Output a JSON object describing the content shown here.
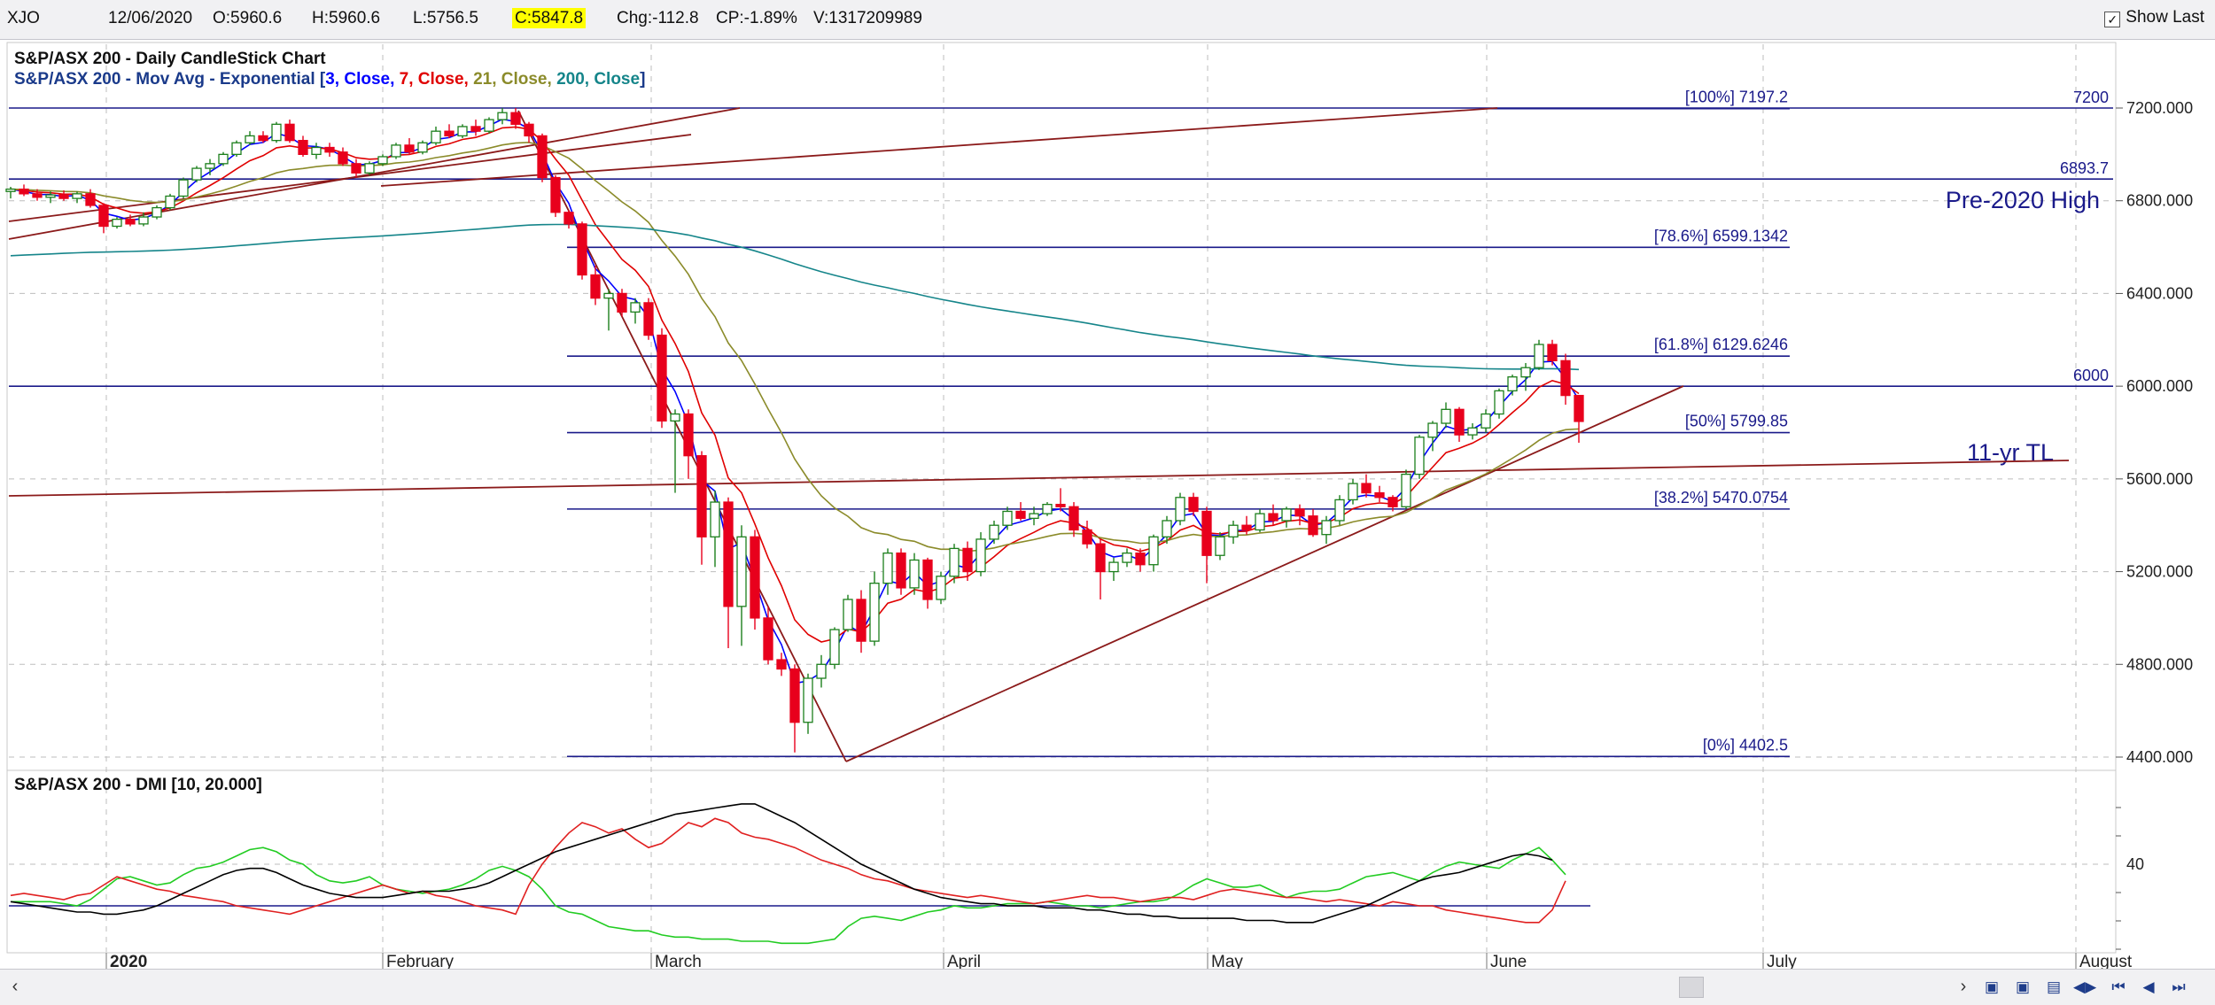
{
  "header": {
    "symbol": "XJO",
    "date": "12/06/2020",
    "open": "O:5960.6",
    "high": "H:5960.6",
    "low": "L:5756.5",
    "close": "C:5847.8",
    "change": "Chg:-112.8",
    "change_pct": "CP:-1.89%",
    "volume": "V:1317209989",
    "show_last_label": "Show Last",
    "show_last_checked": "✓"
  },
  "colors": {
    "up": "#1c7f1c",
    "down": "#e8001c",
    "ema3": "#0000ff",
    "ema7": "#e00000",
    "ema21": "#8b8b2a",
    "ema200": "#15858a",
    "trendline": "#8b1a1a",
    "fib": "#1a1a8a",
    "dmi_plus": "#22cc22",
    "dmi_minus": "#e02020",
    "adx": "#000000",
    "grid": "#bdbdbd"
  },
  "chart_data": [
    {
      "type": "candlestick",
      "title": "S&P/ASX 200 - Daily CandleStick Chart",
      "subtitle_prefix": "S&P/ASX 200 - Mov Avg - Exponential",
      "moving_averages": [
        {
          "period": "3",
          "source": "Close",
          "color": "#0000ff"
        },
        {
          "period": "7",
          "source": "Close",
          "color": "#e00000"
        },
        {
          "period": "21",
          "source": "Close",
          "color": "#8b8b2a"
        },
        {
          "period": "200",
          "source": "Close",
          "color": "#15858a"
        }
      ],
      "ylim": [
        4400,
        7400
      ],
      "y_ticks": [
        "7200.000",
        "6800.000",
        "6400.000",
        "6000.000",
        "5600.000",
        "5200.000",
        "4800.000",
        "4400.000"
      ],
      "y_tick_values": [
        7200,
        6800,
        6400,
        6000,
        5600,
        5200,
        4800,
        4400
      ],
      "x_labels": [
        "2020",
        "February",
        "March",
        "April",
        "May",
        "June",
        "July",
        "August"
      ],
      "fib_levels": [
        {
          "label": "[100%] 7197.2",
          "value": 7197.2
        },
        {
          "label": "[78.6%] 6599.1342",
          "value": 6599.1342
        },
        {
          "label": "[61.8%] 6129.6246",
          "value": 6129.6246
        },
        {
          "label": "[50%] 5799.85",
          "value": 5799.85
        },
        {
          "label": "[38.2%] 5470.0754",
          "value": 5470.0754
        },
        {
          "label": "[0%] 4402.5",
          "value": 4402.5
        }
      ],
      "horizontal_lines": [
        {
          "label": "7200",
          "value": 7200
        },
        {
          "label": "6893.7",
          "value": 6893.7
        },
        {
          "label": "6000",
          "value": 6000
        }
      ],
      "annotations": [
        "Pre-2020 High",
        "11-yr TL"
      ],
      "candles": [
        [
          6840,
          6860,
          6810,
          6850
        ],
        [
          6850,
          6870,
          6820,
          6830
        ],
        [
          6830,
          6850,
          6800,
          6815
        ],
        [
          6815,
          6840,
          6790,
          6825
        ],
        [
          6825,
          6845,
          6800,
          6810
        ],
        [
          6810,
          6840,
          6790,
          6830
        ],
        [
          6830,
          6850,
          6770,
          6780
        ],
        [
          6780,
          6790,
          6660,
          6690
        ],
        [
          6690,
          6730,
          6680,
          6720
        ],
        [
          6720,
          6740,
          6690,
          6700
        ],
        [
          6700,
          6750,
          6690,
          6730
        ],
        [
          6730,
          6780,
          6720,
          6770
        ],
        [
          6770,
          6830,
          6760,
          6820
        ],
        [
          6820,
          6900,
          6810,
          6890
        ],
        [
          6890,
          6950,
          6880,
          6940
        ],
        [
          6940,
          6980,
          6910,
          6960
        ],
        [
          6960,
          7010,
          6950,
          7000
        ],
        [
          7000,
          7060,
          6990,
          7050
        ],
        [
          7050,
          7100,
          7040,
          7080
        ],
        [
          7080,
          7100,
          7050,
          7060
        ],
        [
          7060,
          7140,
          7050,
          7130
        ],
        [
          7130,
          7150,
          7050,
          7060
        ],
        [
          7060,
          7080,
          6990,
          7000
        ],
        [
          7000,
          7050,
          6980,
          7030
        ],
        [
          7030,
          7050,
          6990,
          7010
        ],
        [
          7010,
          7030,
          6950,
          6960
        ],
        [
          6960,
          6980,
          6900,
          6920
        ],
        [
          6920,
          6970,
          6910,
          6960
        ],
        [
          6960,
          7000,
          6950,
          6990
        ],
        [
          6990,
          7050,
          6980,
          7040
        ],
        [
          7040,
          7070,
          7000,
          7010
        ],
        [
          7010,
          7060,
          7000,
          7050
        ],
        [
          7050,
          7120,
          7040,
          7100
        ],
        [
          7100,
          7130,
          7070,
          7080
        ],
        [
          7080,
          7130,
          7070,
          7120
        ],
        [
          7120,
          7150,
          7080,
          7100
        ],
        [
          7100,
          7160,
          7090,
          7150
        ],
        [
          7150,
          7200,
          7130,
          7180
        ],
        [
          7180,
          7200,
          7110,
          7130
        ],
        [
          7130,
          7140,
          7050,
          7080
        ],
        [
          7080,
          7090,
          6880,
          6900
        ],
        [
          6900,
          6910,
          6730,
          6750
        ],
        [
          6750,
          6760,
          6680,
          6700
        ],
        [
          6700,
          6710,
          6460,
          6480
        ],
        [
          6480,
          6520,
          6350,
          6380
        ],
        [
          6380,
          6420,
          6240,
          6400
        ],
        [
          6400,
          6420,
          6300,
          6320
        ],
        [
          6320,
          6380,
          6270,
          6360
        ],
        [
          6360,
          6380,
          6200,
          6220
        ],
        [
          6220,
          6250,
          5820,
          5850
        ],
        [
          5850,
          5900,
          5540,
          5880
        ],
        [
          5880,
          5900,
          5600,
          5700
        ],
        [
          5700,
          5720,
          5230,
          5350
        ],
        [
          5350,
          5550,
          5220,
          5500
        ],
        [
          5500,
          5520,
          4870,
          5050
        ],
        [
          5050,
          5400,
          4880,
          5350
        ],
        [
          5350,
          5380,
          4950,
          5000
        ],
        [
          5000,
          5050,
          4800,
          4820
        ],
        [
          4820,
          4850,
          4750,
          4780
        ],
        [
          4780,
          4800,
          4420,
          4550
        ],
        [
          4550,
          4760,
          4500,
          4740
        ],
        [
          4740,
          4840,
          4700,
          4800
        ],
        [
          4800,
          4960,
          4780,
          4950
        ],
        [
          4950,
          5100,
          4940,
          5080
        ],
        [
          5080,
          5120,
          4850,
          4900
        ],
        [
          4900,
          5200,
          4880,
          5150
        ],
        [
          5150,
          5300,
          5100,
          5280
        ],
        [
          5280,
          5300,
          5100,
          5130
        ],
        [
          5130,
          5280,
          5100,
          5250
        ],
        [
          5250,
          5260,
          5040,
          5080
        ],
        [
          5080,
          5200,
          5060,
          5180
        ],
        [
          5180,
          5320,
          5150,
          5300
        ],
        [
          5300,
          5330,
          5160,
          5200
        ],
        [
          5200,
          5370,
          5180,
          5340
        ],
        [
          5340,
          5420,
          5320,
          5400
        ],
        [
          5400,
          5480,
          5380,
          5460
        ],
        [
          5460,
          5500,
          5420,
          5430
        ],
        [
          5430,
          5480,
          5400,
          5450
        ],
        [
          5450,
          5500,
          5440,
          5490
        ],
        [
          5490,
          5560,
          5460,
          5480
        ],
        [
          5480,
          5500,
          5350,
          5380
        ],
        [
          5380,
          5420,
          5300,
          5320
        ],
        [
          5320,
          5340,
          5080,
          5200
        ],
        [
          5200,
          5260,
          5160,
          5240
        ],
        [
          5240,
          5300,
          5220,
          5280
        ],
        [
          5280,
          5300,
          5200,
          5230
        ],
        [
          5230,
          5360,
          5200,
          5350
        ],
        [
          5350,
          5440,
          5320,
          5420
        ],
        [
          5420,
          5540,
          5400,
          5520
        ],
        [
          5520,
          5540,
          5440,
          5460
        ],
        [
          5460,
          5480,
          5150,
          5270
        ],
        [
          5270,
          5370,
          5250,
          5350
        ],
        [
          5350,
          5420,
          5320,
          5400
        ],
        [
          5400,
          5440,
          5360,
          5380
        ],
        [
          5380,
          5470,
          5370,
          5450
        ],
        [
          5450,
          5490,
          5400,
          5420
        ],
        [
          5420,
          5480,
          5390,
          5470
        ],
        [
          5470,
          5490,
          5400,
          5440
        ],
        [
          5440,
          5470,
          5350,
          5360
        ],
        [
          5360,
          5440,
          5320,
          5420
        ],
        [
          5420,
          5530,
          5400,
          5510
        ],
        [
          5510,
          5600,
          5490,
          5580
        ],
        [
          5580,
          5620,
          5520,
          5540
        ],
        [
          5540,
          5570,
          5500,
          5520
        ],
        [
          5520,
          5530,
          5460,
          5480
        ],
        [
          5480,
          5640,
          5470,
          5620
        ],
        [
          5620,
          5790,
          5600,
          5780
        ],
        [
          5780,
          5850,
          5720,
          5840
        ],
        [
          5840,
          5930,
          5820,
          5900
        ],
        [
          5900,
          5910,
          5760,
          5790
        ],
        [
          5790,
          5840,
          5770,
          5820
        ],
        [
          5820,
          5900,
          5800,
          5880
        ],
        [
          5880,
          5990,
          5860,
          5980
        ],
        [
          5980,
          6050,
          5960,
          6040
        ],
        [
          6040,
          6100,
          5980,
          6080
        ],
        [
          6080,
          6200,
          6070,
          6180
        ],
        [
          6180,
          6200,
          6090,
          6110
        ],
        [
          6110,
          6140,
          5920,
          5960
        ],
        [
          5960,
          5960,
          5756,
          5848
        ]
      ]
    },
    {
      "type": "line",
      "title": "S&P/ASX 200 - DMI [10, 20.000]",
      "y_ticks": [
        "40"
      ],
      "reference_line": 20,
      "series": [
        {
          "color": "#22cc22",
          "values": [
            22,
            22,
            22,
            22,
            21,
            20,
            23,
            28,
            33,
            34,
            32,
            30,
            31,
            35,
            38,
            39,
            41,
            44,
            47,
            48,
            46,
            42,
            40,
            35,
            32,
            31,
            32,
            34,
            30,
            28,
            27,
            26,
            27,
            28,
            30,
            33,
            37,
            39,
            37,
            34,
            28,
            20,
            17,
            16,
            13,
            10,
            9,
            8,
            8,
            6,
            5,
            5,
            4,
            4,
            4,
            3,
            3,
            3,
            2,
            2,
            2,
            3,
            4,
            10,
            14,
            15,
            14,
            13,
            15,
            17,
            18,
            20,
            19,
            19,
            20,
            21,
            21,
            21,
            22,
            21,
            20,
            20,
            19,
            20,
            21,
            22,
            22,
            23,
            26,
            30,
            33,
            31,
            29,
            29,
            30,
            27,
            24,
            26,
            27,
            27,
            28,
            31,
            34,
            35,
            36,
            34,
            32,
            36,
            39,
            41,
            40,
            39,
            38,
            42,
            45,
            48,
            42,
            35
          ]
        },
        {
          "color": "#e02020",
          "values": [
            25,
            26,
            25,
            24,
            23,
            25,
            26,
            30,
            34,
            32,
            30,
            28,
            27,
            25,
            24,
            23,
            22,
            20,
            19,
            18,
            17,
            16,
            18,
            20,
            22,
            24,
            26,
            28,
            30,
            28,
            26,
            27,
            25,
            24,
            22,
            20,
            19,
            18,
            16,
            30,
            40,
            48,
            55,
            60,
            58,
            55,
            57,
            52,
            48,
            50,
            55,
            60,
            58,
            62,
            60,
            55,
            53,
            52,
            50,
            48,
            45,
            42,
            40,
            38,
            35,
            33,
            32,
            30,
            28,
            27,
            26,
            25,
            24,
            25,
            24,
            23,
            22,
            21,
            22,
            23,
            24,
            25,
            24,
            24,
            23,
            22,
            23,
            24,
            24,
            23,
            25,
            27,
            28,
            27,
            26,
            25,
            24,
            24,
            23,
            22,
            23,
            22,
            21,
            20,
            22,
            21,
            20,
            20,
            18,
            17,
            16,
            15,
            14,
            13,
            12,
            12,
            18,
            32
          ]
        },
        {
          "color": "#000000",
          "values": [
            22,
            21,
            20,
            19,
            18,
            17,
            17,
            16,
            16,
            17,
            18,
            20,
            23,
            26,
            29,
            32,
            35,
            37,
            38,
            38,
            36,
            33,
            30,
            28,
            26,
            25,
            24,
            24,
            24,
            25,
            26,
            27,
            27,
            27,
            28,
            29,
            31,
            34,
            37,
            40,
            43,
            46,
            48,
            50,
            52,
            54,
            56,
            58,
            60,
            62,
            64,
            65,
            66,
            67,
            68,
            69,
            69,
            66,
            63,
            60,
            56,
            52,
            48,
            44,
            40,
            37,
            34,
            31,
            28,
            26,
            24,
            23,
            22,
            21,
            21,
            20,
            20,
            20,
            19,
            19,
            19,
            18,
            18,
            17,
            16,
            16,
            15,
            15,
            14,
            14,
            14,
            14,
            14,
            13,
            13,
            13,
            12,
            12,
            12,
            14,
            16,
            18,
            20,
            23,
            26,
            29,
            32,
            34,
            35,
            36,
            38,
            40,
            42,
            44,
            45,
            44,
            42
          ]
        }
      ]
    }
  ]
}
